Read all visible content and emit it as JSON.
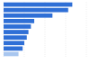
{
  "chart_data": {
    "type": "bar",
    "orientation": "horizontal",
    "categories": [
      null,
      null,
      null,
      null,
      null,
      null,
      null,
      null,
      null,
      null
    ],
    "values": [
      83,
      78,
      59,
      37,
      33,
      30,
      28,
      25,
      23,
      18
    ],
    "colors": [
      "#2f6fd6",
      "#2f6fd6",
      "#2f6fd6",
      "#2f6fd6",
      "#2f6fd6",
      "#2f6fd6",
      "#2f6fd6",
      "#2f6fd6",
      "#2f6fd6",
      "#a8c6ef"
    ],
    "xlim": [
      0,
      100
    ],
    "xticks": [
      0,
      25,
      50,
      75,
      100
    ],
    "grid": true,
    "tick_labels": false
  }
}
